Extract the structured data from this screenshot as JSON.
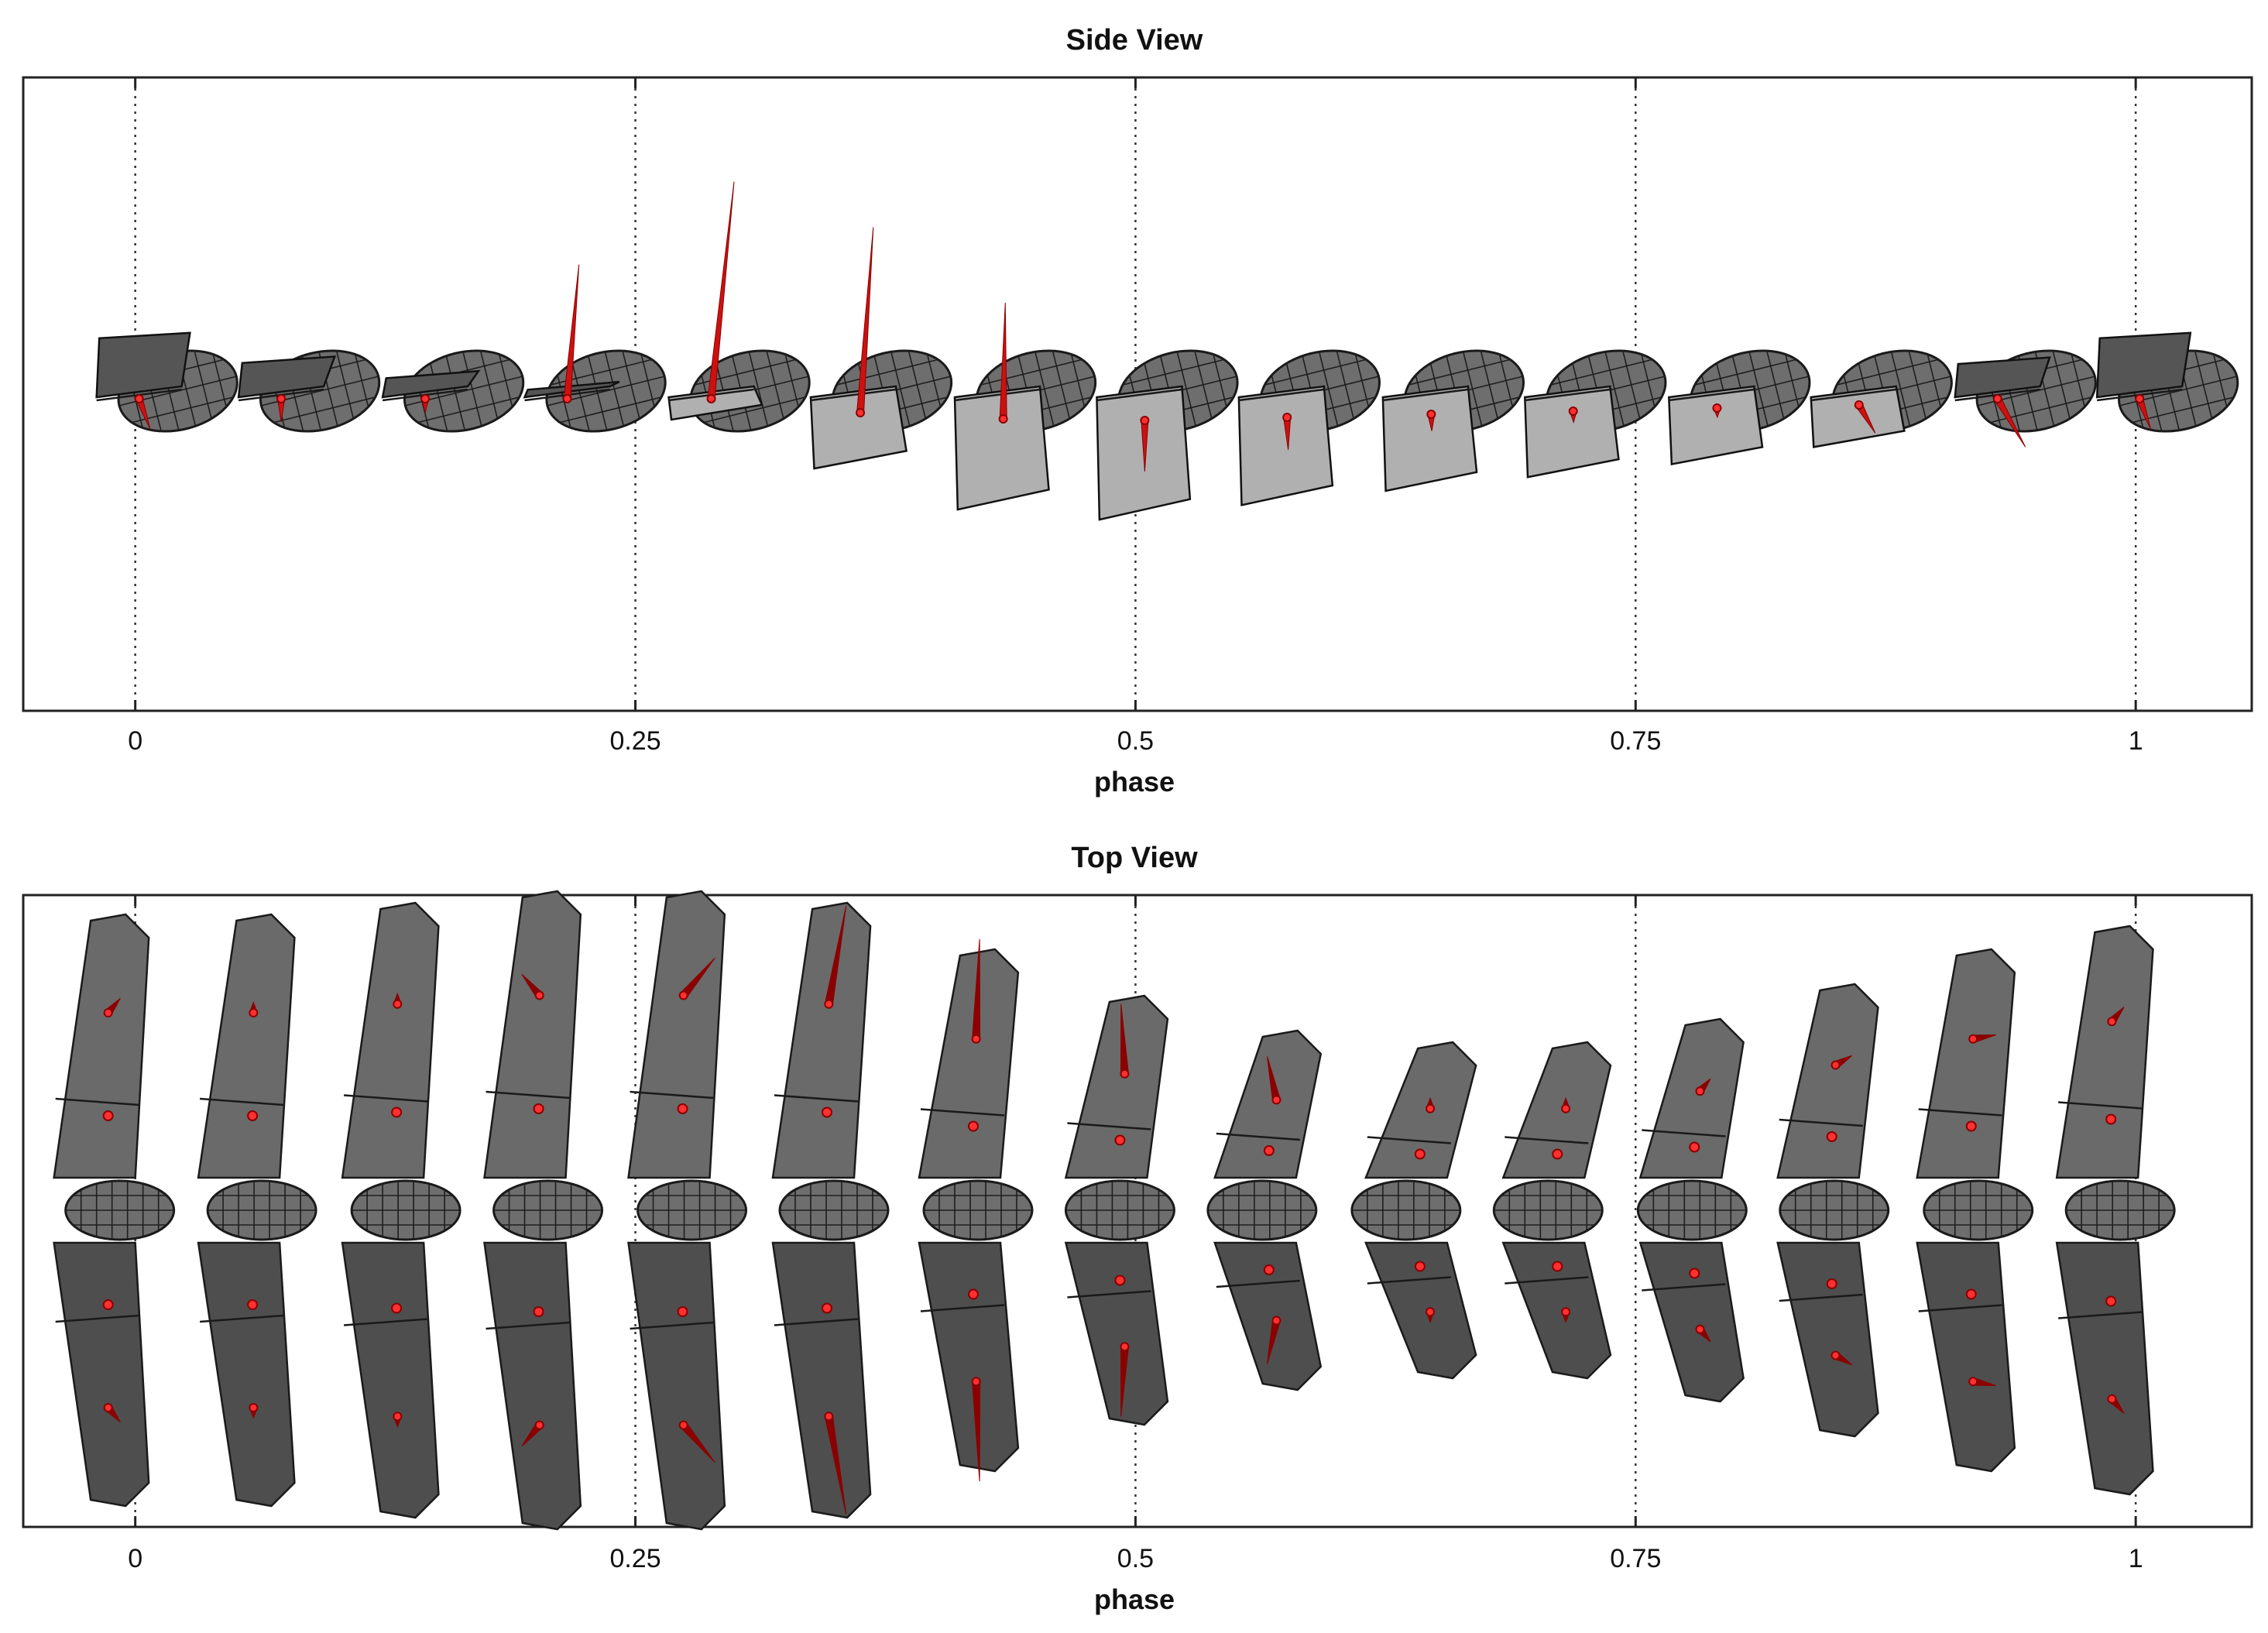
{
  "panels": [
    {
      "title": "Side View",
      "xlabel": "phase",
      "view": "side"
    },
    {
      "title": "Top View",
      "xlabel": "phase",
      "view": "top"
    }
  ],
  "x_ticks": [
    "0",
    "0.25",
    "0.5",
    "0.75",
    "1"
  ],
  "x_tick_values": [
    0,
    0.25,
    0.5,
    0.75,
    1
  ],
  "x_range": [
    -0.056,
    1.058
  ],
  "frame_count": 15,
  "frame_phases": [
    0,
    0.071,
    0.143,
    0.214,
    0.286,
    0.357,
    0.429,
    0.5,
    0.571,
    0.643,
    0.714,
    0.786,
    0.857,
    0.929,
    1
  ],
  "colors": {
    "force_vector": "#cc1111",
    "force_vector_dark": "#8b0000",
    "body": "#6e6e6e",
    "wing_upper": "#555555",
    "wing_lower": "#b0b0b0",
    "frame": "#222222"
  },
  "side_frames": [
    {
      "phase": 0,
      "wing_angle": -40,
      "wing_len": 0.55,
      "wing_tone": "dark",
      "vec_angle": 160,
      "vec_len": 0.35
    },
    {
      "phase": 0.071,
      "wing_angle": -18,
      "wing_len": 0.6,
      "wing_tone": "dark",
      "vec_angle": 180,
      "vec_len": 0.25
    },
    {
      "phase": 0.143,
      "wing_angle": -8,
      "wing_len": 0.55,
      "wing_tone": "dark",
      "vec_angle": 180,
      "vec_len": 0.15
    },
    {
      "phase": 0.214,
      "wing_angle": 0,
      "wing_len": 0.45,
      "wing_tone": "dark",
      "vec_angle": 5,
      "vec_len": 1.45
    },
    {
      "phase": 0.286,
      "wing_angle": 8,
      "wing_len": 0.35,
      "wing_tone": "light",
      "vec_angle": 6,
      "vec_len": 2.35
    },
    {
      "phase": 0.357,
      "wing_angle": 35,
      "wing_len": 0.7,
      "wing_tone": "light",
      "vec_angle": 4,
      "vec_len": 2.0
    },
    {
      "phase": 0.429,
      "wing_angle": 55,
      "wing_len": 0.9,
      "wing_tone": "light",
      "vec_angle": 1,
      "vec_len": 1.25
    },
    {
      "phase": 0.5,
      "wing_angle": 60,
      "wing_len": 0.95,
      "wing_tone": "light",
      "vec_angle": 180,
      "vec_len": 0.55
    },
    {
      "phase": 0.571,
      "wing_angle": 55,
      "wing_len": 0.85,
      "wing_tone": "light",
      "vec_angle": 178,
      "vec_len": 0.35
    },
    {
      "phase": 0.643,
      "wing_angle": 50,
      "wing_len": 0.75,
      "wing_tone": "light",
      "vec_angle": 178,
      "vec_len": 0.18
    },
    {
      "phase": 0.714,
      "wing_angle": 45,
      "wing_len": 0.65,
      "wing_tone": "light",
      "vec_angle": 178,
      "vec_len": 0.12
    },
    {
      "phase": 0.786,
      "wing_angle": 40,
      "wing_len": 0.55,
      "wing_tone": "light",
      "vec_angle": 178,
      "vec_len": 0.1
    },
    {
      "phase": 0.857,
      "wing_angle": 30,
      "wing_len": 0.45,
      "wing_tone": "light",
      "vec_angle": 150,
      "vec_len": 0.35
    },
    {
      "phase": 0.929,
      "wing_angle": -20,
      "wing_len": 0.5,
      "wing_tone": "dark",
      "vec_angle": 150,
      "vec_len": 0.6
    },
    {
      "phase": 1,
      "wing_angle": -40,
      "wing_len": 0.55,
      "wing_tone": "dark",
      "vec_angle": 160,
      "vec_len": 0.35
    }
  ],
  "top_frames": [
    {
      "phase": 0,
      "span": 1.0,
      "sweep": 0.0,
      "vec_len": 0.15,
      "vec_angle": 40
    },
    {
      "phase": 0.071,
      "span": 1.0,
      "sweep": 0.05,
      "vec_len": 0.05,
      "vec_angle": 0
    },
    {
      "phase": 0.143,
      "span": 1.05,
      "sweep": 0.05,
      "vec_len": 0.05,
      "vec_angle": 0
    },
    {
      "phase": 0.214,
      "span": 1.1,
      "sweep": 0.05,
      "vec_len": 0.25,
      "vec_angle": -40
    },
    {
      "phase": 0.286,
      "span": 1.1,
      "sweep": 0.05,
      "vec_len": 0.5,
      "vec_angle": 40
    },
    {
      "phase": 0.357,
      "span": 1.05,
      "sweep": 0.1,
      "vec_len": 1.1,
      "vec_angle": 10
    },
    {
      "phase": 0.429,
      "span": 0.85,
      "sweep": 0.15,
      "vec_len": 1.1,
      "vec_angle": 2
    },
    {
      "phase": 0.5,
      "span": 0.65,
      "sweep": 0.25,
      "vec_len": 0.75,
      "vec_angle": -3
    },
    {
      "phase": 0.571,
      "span": 0.5,
      "sweep": 0.4,
      "vec_len": 0.45,
      "vec_angle": -12
    },
    {
      "phase": 0.643,
      "span": 0.45,
      "sweep": 0.55,
      "vec_len": 0.05,
      "vec_angle": 0
    },
    {
      "phase": 0.714,
      "span": 0.45,
      "sweep": 0.45,
      "vec_len": 0.05,
      "vec_angle": 0
    },
    {
      "phase": 0.786,
      "span": 0.55,
      "sweep": 0.3,
      "vec_len": 0.12,
      "vec_angle": 40
    },
    {
      "phase": 0.857,
      "span": 0.7,
      "sweep": 0.2,
      "vec_len": 0.15,
      "vec_angle": 60
    },
    {
      "phase": 0.929,
      "span": 0.85,
      "sweep": 0.1,
      "vec_len": 0.2,
      "vec_angle": 80
    },
    {
      "phase": 1,
      "span": 0.95,
      "sweep": 0.05,
      "vec_len": 0.15,
      "vec_angle": 40
    }
  ]
}
